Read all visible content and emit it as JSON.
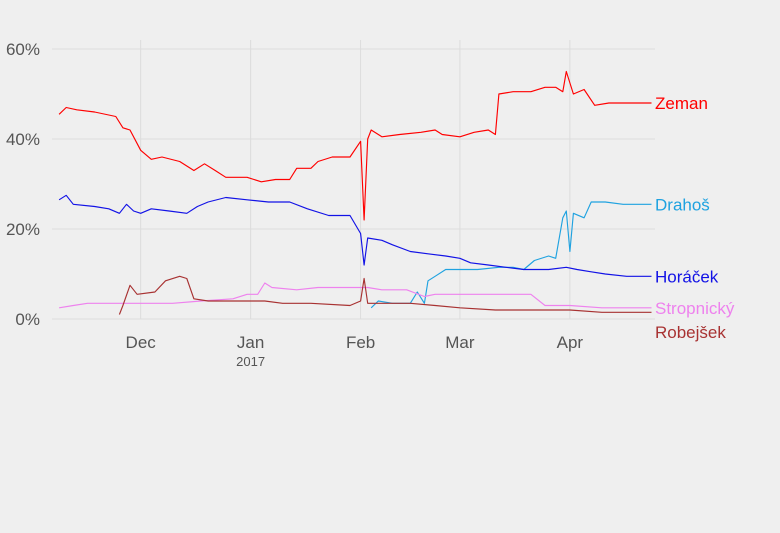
{
  "chart_data": {
    "type": "line",
    "title": "",
    "xlabel": "",
    "ylabel": "",
    "x_axis": {
      "type": "date",
      "range": [
        "2016-11-06",
        "2017-04-25"
      ],
      "ticks": [
        {
          "date": "2016-12-01",
          "label": "Dec",
          "sub": ""
        },
        {
          "date": "2017-01-01",
          "label": "Jan",
          "sub": "2017"
        },
        {
          "date": "2017-02-01",
          "label": "Feb",
          "sub": ""
        },
        {
          "date": "2017-03-01",
          "label": "Mar",
          "sub": ""
        },
        {
          "date": "2017-04-01",
          "label": "Apr",
          "sub": ""
        }
      ]
    },
    "y_axis": {
      "range": [
        0,
        62
      ],
      "ticks": [
        0,
        20,
        40,
        60
      ],
      "tick_labels": [
        "0%",
        "20%",
        "40%",
        "60%"
      ]
    },
    "grid": true,
    "legend": "direct labels at line ends (right)",
    "series": [
      {
        "name": "Zeman",
        "color": "#ff0000",
        "points": [
          [
            "2016-11-08",
            45.5
          ],
          [
            "2016-11-10",
            47
          ],
          [
            "2016-11-13",
            46.5
          ],
          [
            "2016-11-18",
            46
          ],
          [
            "2016-11-24",
            45
          ],
          [
            "2016-11-26",
            42.5
          ],
          [
            "2016-11-28",
            42
          ],
          [
            "2016-12-01",
            37.5
          ],
          [
            "2016-12-04",
            35.5
          ],
          [
            "2016-12-07",
            36
          ],
          [
            "2016-12-12",
            35
          ],
          [
            "2016-12-16",
            33
          ],
          [
            "2016-12-19",
            34.5
          ],
          [
            "2016-12-22",
            33
          ],
          [
            "2016-12-25",
            31.5
          ],
          [
            "2016-12-31",
            31.5
          ],
          [
            "2017-01-04",
            30.5
          ],
          [
            "2017-01-08",
            31
          ],
          [
            "2017-01-12",
            31
          ],
          [
            "2017-01-14",
            33.5
          ],
          [
            "2017-01-18",
            33.5
          ],
          [
            "2017-01-20",
            35
          ],
          [
            "2017-01-24",
            36
          ],
          [
            "2017-01-29",
            36
          ],
          [
            "2017-02-01",
            39.5
          ],
          [
            "2017-02-02",
            22
          ],
          [
            "2017-02-03",
            40
          ],
          [
            "2017-02-04",
            42
          ],
          [
            "2017-02-07",
            40.5
          ],
          [
            "2017-02-12",
            41
          ],
          [
            "2017-02-18",
            41.5
          ],
          [
            "2017-02-22",
            42
          ],
          [
            "2017-02-24",
            41
          ],
          [
            "2017-03-01",
            40.5
          ],
          [
            "2017-03-05",
            41.5
          ],
          [
            "2017-03-09",
            42
          ],
          [
            "2017-03-11",
            41
          ],
          [
            "2017-03-12",
            50
          ],
          [
            "2017-03-16",
            50.5
          ],
          [
            "2017-03-21",
            50.5
          ],
          [
            "2017-03-25",
            51.5
          ],
          [
            "2017-03-28",
            51.5
          ],
          [
            "2017-03-30",
            50.5
          ],
          [
            "2017-03-31",
            55
          ],
          [
            "2017-04-02",
            50
          ],
          [
            "2017-04-05",
            51
          ],
          [
            "2017-04-08",
            47.5
          ],
          [
            "2017-04-12",
            48
          ],
          [
            "2017-04-16",
            48
          ],
          [
            "2017-04-24",
            48
          ]
        ]
      },
      {
        "name": "Drahoš",
        "color": "#1fa2e0",
        "points": [
          [
            "2017-02-04",
            2.5
          ],
          [
            "2017-02-06",
            4
          ],
          [
            "2017-02-10",
            3.5
          ],
          [
            "2017-02-15",
            3.5
          ],
          [
            "2017-02-17",
            6
          ],
          [
            "2017-02-19",
            3.5
          ],
          [
            "2017-02-20",
            8.5
          ],
          [
            "2017-02-22",
            9.5
          ],
          [
            "2017-02-25",
            11
          ],
          [
            "2017-03-01",
            11
          ],
          [
            "2017-03-06",
            11
          ],
          [
            "2017-03-12",
            11.5
          ],
          [
            "2017-03-16",
            11.5
          ],
          [
            "2017-03-19",
            11
          ],
          [
            "2017-03-22",
            13
          ],
          [
            "2017-03-26",
            14
          ],
          [
            "2017-03-28",
            13.5
          ],
          [
            "2017-03-30",
            22.5
          ],
          [
            "2017-03-31",
            24
          ],
          [
            "2017-04-01",
            15
          ],
          [
            "2017-04-02",
            23.5
          ],
          [
            "2017-04-05",
            22.5
          ],
          [
            "2017-04-07",
            26
          ],
          [
            "2017-04-11",
            26
          ],
          [
            "2017-04-16",
            25.5
          ],
          [
            "2017-04-24",
            25.5
          ]
        ]
      },
      {
        "name": "Horáček",
        "color": "#1212e6",
        "points": [
          [
            "2016-11-08",
            26.5
          ],
          [
            "2016-11-10",
            27.5
          ],
          [
            "2016-11-12",
            25.5
          ],
          [
            "2016-11-18",
            25
          ],
          [
            "2016-11-22",
            24.5
          ],
          [
            "2016-11-25",
            23.5
          ],
          [
            "2016-11-27",
            25.5
          ],
          [
            "2016-11-29",
            24
          ],
          [
            "2016-12-01",
            23.5
          ],
          [
            "2016-12-04",
            24.5
          ],
          [
            "2016-12-09",
            24
          ],
          [
            "2016-12-14",
            23.5
          ],
          [
            "2016-12-17",
            25
          ],
          [
            "2016-12-20",
            26
          ],
          [
            "2016-12-25",
            27
          ],
          [
            "2016-12-31",
            26.5
          ],
          [
            "2017-01-06",
            26
          ],
          [
            "2017-01-12",
            26
          ],
          [
            "2017-01-17",
            24.5
          ],
          [
            "2017-01-23",
            23
          ],
          [
            "2017-01-29",
            23
          ],
          [
            "2017-02-01",
            19
          ],
          [
            "2017-02-02",
            12
          ],
          [
            "2017-02-03",
            18
          ],
          [
            "2017-02-07",
            17.5
          ],
          [
            "2017-02-10",
            16.5
          ],
          [
            "2017-02-15",
            15
          ],
          [
            "2017-02-20",
            14.5
          ],
          [
            "2017-02-25",
            14
          ],
          [
            "2017-03-01",
            13.5
          ],
          [
            "2017-03-04",
            12.5
          ],
          [
            "2017-03-09",
            12
          ],
          [
            "2017-03-14",
            11.5
          ],
          [
            "2017-03-19",
            11
          ],
          [
            "2017-03-26",
            11
          ],
          [
            "2017-03-31",
            11.5
          ],
          [
            "2017-04-03",
            11
          ],
          [
            "2017-04-07",
            10.5
          ],
          [
            "2017-04-11",
            10
          ],
          [
            "2017-04-17",
            9.5
          ],
          [
            "2017-04-24",
            9.5
          ]
        ]
      },
      {
        "name": "Stropnický",
        "color": "#ee82ee",
        "points": [
          [
            "2016-11-08",
            2.5
          ],
          [
            "2016-11-12",
            3
          ],
          [
            "2016-11-16",
            3.5
          ],
          [
            "2016-11-24",
            3.5
          ],
          [
            "2016-12-01",
            3.5
          ],
          [
            "2016-12-10",
            3.5
          ],
          [
            "2016-12-18",
            4
          ],
          [
            "2016-12-27",
            4.5
          ],
          [
            "2016-12-31",
            5.5
          ],
          [
            "2017-01-03",
            5.5
          ],
          [
            "2017-01-05",
            8
          ],
          [
            "2017-01-07",
            7
          ],
          [
            "2017-01-14",
            6.5
          ],
          [
            "2017-01-20",
            7
          ],
          [
            "2017-01-29",
            7
          ],
          [
            "2017-02-03",
            7
          ],
          [
            "2017-02-07",
            6.5
          ],
          [
            "2017-02-14",
            6.5
          ],
          [
            "2017-02-19",
            5
          ],
          [
            "2017-02-22",
            5.5
          ],
          [
            "2017-03-01",
            5.5
          ],
          [
            "2017-03-11",
            5.5
          ],
          [
            "2017-03-21",
            5.5
          ],
          [
            "2017-03-25",
            3
          ],
          [
            "2017-04-01",
            3
          ],
          [
            "2017-04-10",
            2.5
          ],
          [
            "2017-04-24",
            2.5
          ]
        ]
      },
      {
        "name": "Robejšek",
        "color": "#a83232",
        "points": [
          [
            "2016-11-25",
            1
          ],
          [
            "2016-11-26",
            3
          ],
          [
            "2016-11-28",
            7.5
          ],
          [
            "2016-11-30",
            5.5
          ],
          [
            "2016-12-05",
            6
          ],
          [
            "2016-12-08",
            8.5
          ],
          [
            "2016-12-12",
            9.5
          ],
          [
            "2016-12-14",
            9
          ],
          [
            "2016-12-16",
            4.5
          ],
          [
            "2016-12-20",
            4
          ],
          [
            "2016-12-25",
            4
          ],
          [
            "2016-12-31",
            4
          ],
          [
            "2017-01-05",
            4
          ],
          [
            "2017-01-10",
            3.5
          ],
          [
            "2017-01-18",
            3.5
          ],
          [
            "2017-01-29",
            3
          ],
          [
            "2017-02-01",
            4
          ],
          [
            "2017-02-02",
            9
          ],
          [
            "2017-02-03",
            3.5
          ],
          [
            "2017-02-10",
            3.5
          ],
          [
            "2017-02-15",
            3.5
          ],
          [
            "2017-02-22",
            3
          ],
          [
            "2017-03-01",
            2.5
          ],
          [
            "2017-03-11",
            2
          ],
          [
            "2017-03-16",
            2
          ],
          [
            "2017-03-26",
            2
          ],
          [
            "2017-04-01",
            2
          ],
          [
            "2017-04-10",
            1.5
          ],
          [
            "2017-04-24",
            1.5
          ]
        ]
      }
    ]
  }
}
